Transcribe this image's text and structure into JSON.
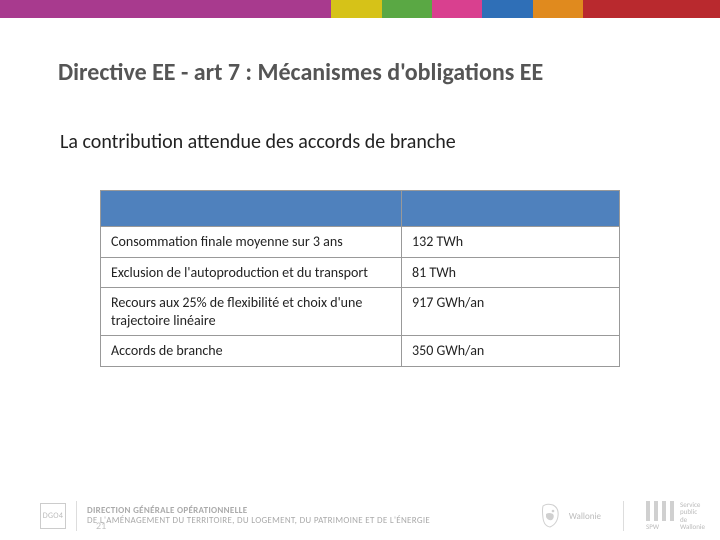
{
  "topstrip": {
    "segments": [
      {
        "color": "#a83a8e",
        "width_pct": 46
      },
      {
        "color": "#d6c218",
        "width_pct": 7
      },
      {
        "color": "#5aa844",
        "width_pct": 7
      },
      {
        "color": "#d9408f",
        "width_pct": 7
      },
      {
        "color": "#2f6fb7",
        "width_pct": 7
      },
      {
        "color": "#e08a1e",
        "width_pct": 7
      },
      {
        "color": "#b9292e",
        "width_pct": 19
      }
    ]
  },
  "title": "Directive EE - art 7 :  Mécanismes d'obligations EE",
  "title_color": "#5a5a5a",
  "subtitle": "La contribution attendue des accords de branche",
  "table": {
    "header_bg": "#4f81bd",
    "border_color": "#999999",
    "font_size_pt": 11,
    "col_widths_pct": [
      58,
      42
    ],
    "rows": [
      {
        "label": "Consommation finale moyenne sur 3 ans",
        "value": "132 TWh"
      },
      {
        "label": "Exclusion de l'autoproduction et du transport",
        "value": "81 TWh"
      },
      {
        "label": "Recours aux 25% de flexibilité et choix d'une trajectoire linéaire",
        "value": "917 GWh/an"
      },
      {
        "label": "Accords de branche",
        "value": "350 GWh/an"
      }
    ]
  },
  "footer": {
    "dgo4": "DGO4",
    "line1": "DIRECTION GÉNÉRALE OPÉRATIONNELLE",
    "line2": "DE L'AMÉNAGEMENT DU TERRITOIRE, DU LOGEMENT, DU PATRIMOINE ET DE L'ÉNERGIE",
    "wallonie_label": "Wallonie",
    "spw_label": "SPW",
    "spw_sub1": "Service public",
    "spw_sub2": "de Wallonie",
    "text_color": "#bfbfbf"
  },
  "page_number": "21",
  "background_color": "#ffffff"
}
